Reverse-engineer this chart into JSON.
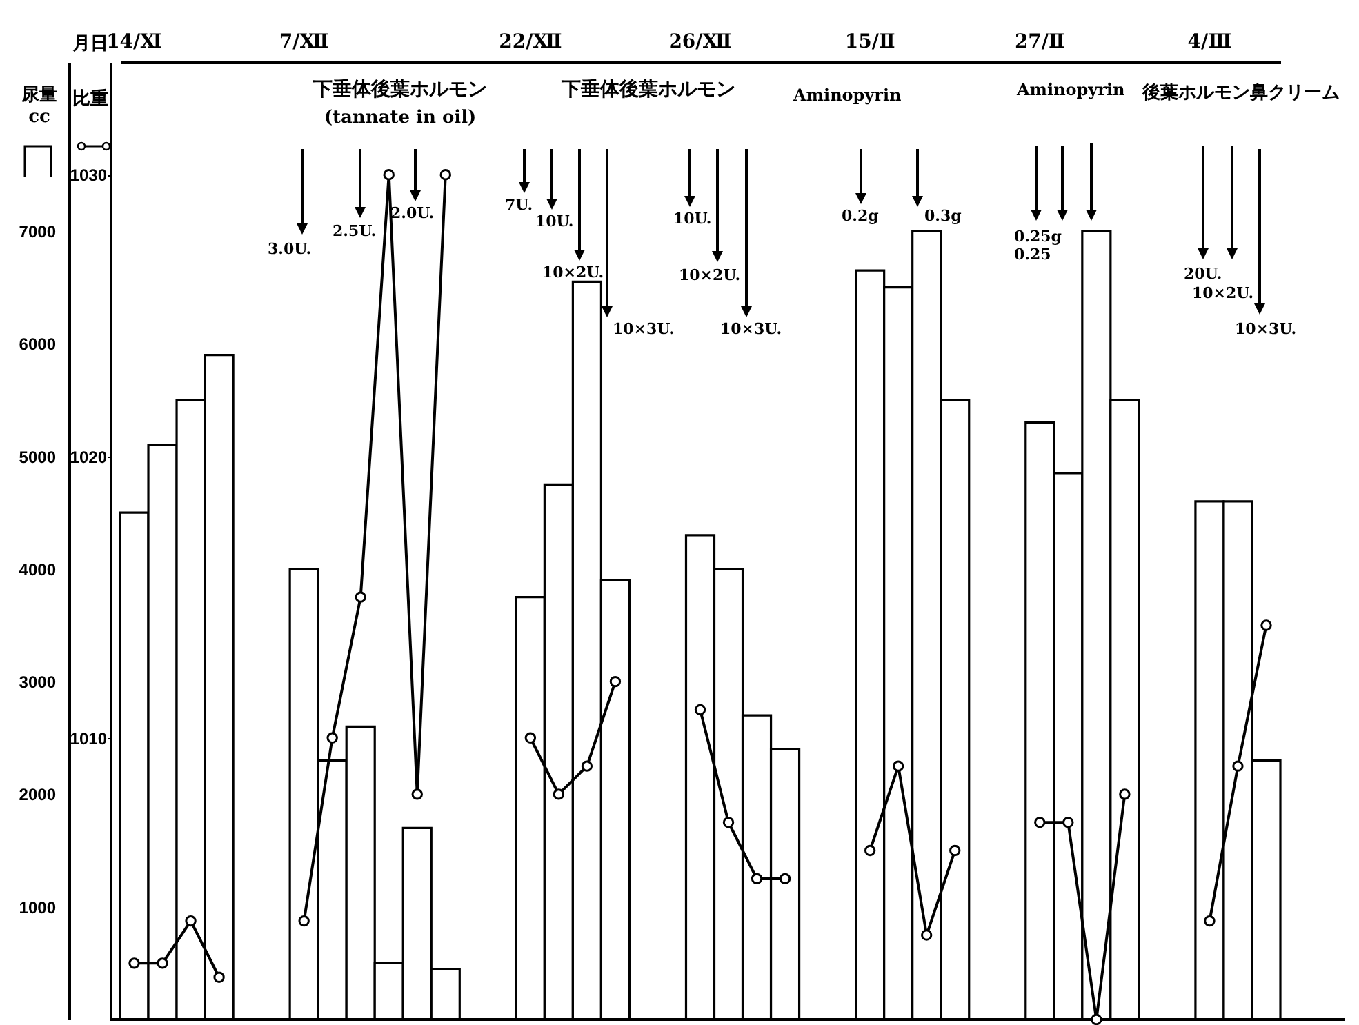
{
  "chart_data": {
    "type": "bar",
    "xlabel": "月日",
    "ylabel": "尿量 cc",
    "y2label": "比重",
    "categories": [
      "14/Ⅺ",
      null,
      null,
      null,
      null,
      null,
      "7/Ⅻ",
      null,
      null,
      null,
      null,
      null,
      null,
      null,
      "22/Ⅻ",
      null,
      null,
      null,
      null,
      null,
      "26/Ⅻ",
      null,
      null,
      null,
      null,
      null,
      "15/Ⅱ",
      null,
      null,
      null,
      null,
      null,
      "27/Ⅱ",
      null,
      null,
      null,
      null,
      null,
      "4/Ⅲ",
      null,
      null
    ],
    "series": [
      {
        "color": "#000000",
        "values": [
          4500,
          5100,
          5500,
          5900,
          null,
          null,
          4000,
          2300,
          2600,
          500,
          1700,
          450,
          null,
          null,
          3750,
          4750,
          6550,
          3900,
          null,
          null,
          4300,
          4000,
          2700,
          2400,
          null,
          null,
          6650,
          6500,
          7000,
          5500,
          null,
          null,
          5300,
          4850,
          7000,
          5500,
          null,
          null,
          4600,
          4600,
          2300
        ]
      },
      {
        "type": "line",
        "axis": "y2",
        "color": "#000000",
        "values": [
          1002,
          1002,
          1003.5,
          1001.5,
          null,
          null,
          1003.5,
          1010,
          1015,
          1030,
          1008,
          1030,
          null,
          null,
          1010,
          1008,
          1009,
          1012,
          null,
          null,
          1011,
          1007,
          1005,
          1005,
          null,
          null,
          1006,
          1009,
          1003,
          1006,
          null,
          null,
          1007,
          1007,
          1000,
          1008,
          null,
          null,
          1003.5,
          1009,
          1014
        ]
      }
    ],
    "ylim": [
      0,
      8500
    ],
    "yticks": [
      1000,
      2000,
      3000,
      4000,
      5000,
      6000,
      7000
    ],
    "y2lim": [
      1000,
      1034
    ],
    "y2ticks": [
      1010,
      1020,
      1030
    ],
    "marker": "circle",
    "line_style": "solid",
    "grid": false,
    "annotations": [
      "下垂体後葉ホルモン",
      "(tannate in oil)",
      "下垂体後葉ホルモン",
      "Aminopyrin",
      "Aminopyrin",
      "後葉ホルモン鼻クリーム",
      "3.0U.",
      "2.5U.",
      "2.0U.",
      "7U.",
      "10U.",
      "10×2U.",
      "10×3U.",
      "10U.",
      "10×2U.",
      "10×3U.",
      "0.2g",
      "0.3g",
      "0.25g",
      "0.25",
      "20U.",
      "10×2U.",
      "10×3U."
    ]
  }
}
